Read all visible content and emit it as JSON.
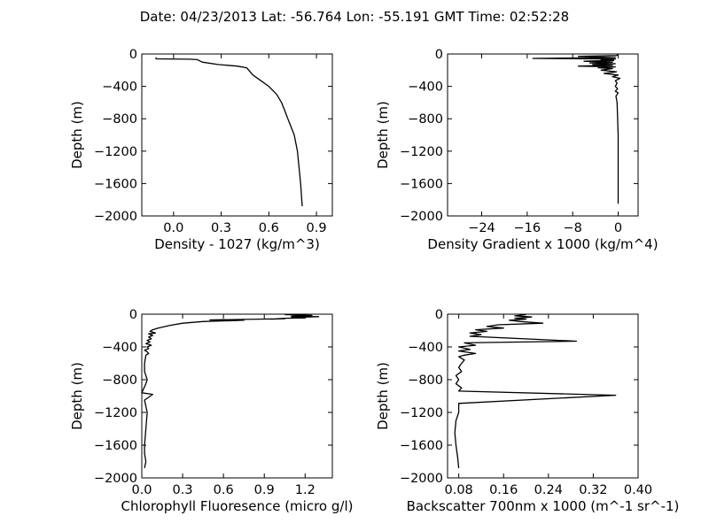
{
  "figure": {
    "title": "Date: 04/23/2013  Lat:  -56.764 Lon:  -55.191  GMT Time: 02:52:28"
  },
  "chart_data": [
    {
      "type": "line",
      "xlabel": "Density - 1027 (kg/m^3)",
      "ylabel": "Depth (m)",
      "xlim": [
        -0.2,
        1.0
      ],
      "ylim": [
        -2000,
        0
      ],
      "xticks": [
        0.0,
        0.3,
        0.6,
        0.9
      ],
      "xtick_labels": [
        "0.0",
        "0.3",
        "0.6",
        "0.9"
      ],
      "yticks": [
        0,
        -400,
        -800,
        -1200,
        -1600,
        -2000
      ],
      "ytick_labels": [
        "0",
        "−400",
        "−800",
        "−1200",
        "−1600",
        "−2000"
      ],
      "grid": false,
      "series": [
        {
          "x": [
            -0.11,
            -0.11,
            0.1,
            0.15,
            0.18,
            0.28,
            0.4,
            0.46,
            0.5,
            0.55,
            0.6,
            0.65,
            0.68,
            0.7,
            0.72,
            0.74,
            0.76,
            0.78,
            0.79,
            0.8,
            0.81
          ],
          "y": [
            -40,
            -60,
            -65,
            -70,
            -100,
            -130,
            -150,
            -170,
            -260,
            -330,
            -400,
            -500,
            -600,
            -700,
            -800,
            -900,
            -1000,
            -1200,
            -1400,
            -1600,
            -1880
          ]
        }
      ]
    },
    {
      "type": "line",
      "xlabel": "Density Gradient x 1000 (kg/m^4)",
      "ylabel": "Depth (m)",
      "xlim": [
        -30,
        3.5
      ],
      "ylim": [
        -2000,
        0
      ],
      "xticks": [
        -24,
        -16,
        -8,
        0
      ],
      "xtick_labels": [
        "−24",
        "−16",
        "−8",
        "0"
      ],
      "yticks": [
        0,
        -400,
        -800,
        -1200,
        -1600,
        -2000
      ],
      "ytick_labels": [
        "0",
        "−400",
        "−800",
        "−1200",
        "−1600",
        "−2000"
      ],
      "grid": false,
      "series": [
        {
          "x": [
            0,
            -0.3,
            -7,
            -0.5,
            -15,
            -0.5,
            -3,
            -0.8,
            -6,
            -1,
            -5,
            -0.5,
            -4.5,
            -1,
            -7,
            -0.5,
            -3.5,
            -1,
            -3,
            -0.3,
            -2.5,
            0,
            -1,
            0.3,
            -0.5,
            -0.2,
            -0.5,
            -0.1,
            -0.5,
            0,
            -0.4,
            -0.2,
            -0.1,
            0,
            0,
            0,
            0,
            0
          ],
          "y": [
            -5,
            -20,
            -30,
            -45,
            -55,
            -62,
            -70,
            -80,
            -90,
            -100,
            -110,
            -120,
            -130,
            -140,
            -150,
            -160,
            -170,
            -180,
            -200,
            -220,
            -240,
            -260,
            -280,
            -300,
            -330,
            -360,
            -400,
            -430,
            -460,
            -480,
            -520,
            -600,
            -800,
            -1000,
            -1200,
            -1400,
            -1600,
            -1850
          ]
        }
      ]
    },
    {
      "type": "line",
      "xlabel": "Chlorophyll Fluoresence (micro g/l)",
      "ylabel": "Depth (m)",
      "xlim": [
        0.0,
        1.4
      ],
      "ylim": [
        -2000,
        0
      ],
      "xticks": [
        0.0,
        0.3,
        0.6,
        0.9,
        1.2
      ],
      "xtick_labels": [
        "0.0",
        "0.3",
        "0.6",
        "0.9",
        "1.2"
      ],
      "yticks": [
        0,
        -400,
        -800,
        -1200,
        -1600,
        -2000
      ],
      "ytick_labels": [
        "0",
        "−400",
        "−800",
        "−1200",
        "−1600",
        "−2000"
      ],
      "grid": false,
      "series": [
        {
          "x": [
            1.05,
            1.25,
            1.1,
            1.3,
            1.1,
            1.2,
            1.05,
            0.95,
            1.05,
            0.5,
            0.75,
            0.45,
            0.3,
            0.2,
            0.12,
            0.08,
            0.06,
            0.1,
            0.05,
            0.08,
            0.05,
            0.07,
            0.04,
            0.06,
            0.03,
            0.07,
            0.04,
            0.05,
            0.02,
            0.04,
            0.05,
            0.03,
            0.02,
            0.02,
            0.04,
            0.03,
            0.0,
            0.08,
            0.02,
            0.04,
            0.03,
            0.02,
            0.02,
            0.03,
            0.02
          ],
          "y": [
            -5,
            -15,
            -25,
            -30,
            -40,
            -45,
            -50,
            -60,
            -55,
            -70,
            -75,
            -90,
            -110,
            -140,
            -170,
            -190,
            -210,
            -230,
            -240,
            -260,
            -280,
            -300,
            -320,
            -340,
            -360,
            -380,
            -400,
            -420,
            -440,
            -460,
            -480,
            -500,
            -600,
            -700,
            -800,
            -850,
            -960,
            -980,
            -1050,
            -1200,
            -1400,
            -1600,
            -1700,
            -1800,
            -1880
          ]
        }
      ]
    },
    {
      "type": "line",
      "xlabel": "Backscatter 700nm x 1000 (m^-1 sr^-1)",
      "ylabel": "Depth (m)",
      "xlim": [
        0.06,
        0.4
      ],
      "ylim": [
        -2000,
        0
      ],
      "xticks": [
        0.08,
        0.16,
        0.24,
        0.32,
        0.4
      ],
      "xtick_labels": [
        "0.08",
        "0.16",
        "0.24",
        "0.32",
        "0.40"
      ],
      "yticks": [
        0,
        -400,
        -800,
        -1200,
        -1600,
        -2000
      ],
      "ytick_labels": [
        "0",
        "−400",
        "−800",
        "−1200",
        "−1600",
        "−2000"
      ],
      "grid": false,
      "series": [
        {
          "x": [
            0.2,
            0.18,
            0.21,
            0.18,
            0.2,
            0.17,
            0.19,
            0.23,
            0.15,
            0.13,
            0.16,
            0.11,
            0.13,
            0.1,
            0.12,
            0.1,
            0.29,
            0.09,
            0.11,
            0.08,
            0.1,
            0.08,
            0.11,
            0.09,
            0.08,
            0.09,
            0.085,
            0.08,
            0.085,
            0.075,
            0.08,
            0.075,
            0.085,
            0.08,
            0.36,
            0.08,
            0.08,
            0.075,
            0.073,
            0.075,
            0.078,
            0.08
          ],
          "y": [
            -5,
            -20,
            -35,
            -50,
            -60,
            -75,
            -90,
            -110,
            -130,
            -150,
            -170,
            -190,
            -210,
            -230,
            -250,
            -270,
            -330,
            -350,
            -380,
            -400,
            -430,
            -450,
            -480,
            -500,
            -520,
            -560,
            -600,
            -650,
            -700,
            -750,
            -800,
            -850,
            -900,
            -940,
            -990,
            -1090,
            -1200,
            -1300,
            -1450,
            -1600,
            -1750,
            -1880
          ]
        }
      ]
    }
  ]
}
